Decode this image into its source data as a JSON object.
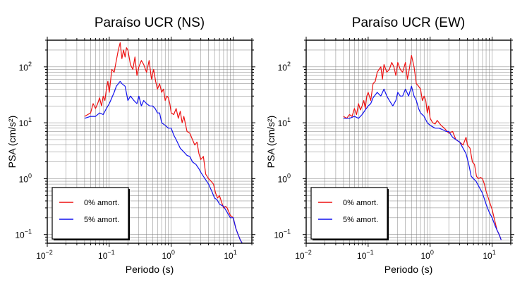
{
  "chart_data": [
    {
      "type": "line",
      "title": "Paraíso UCR (NS)",
      "xlabel": "Periodo (s)",
      "ylabel": "PSA (cm/s²)",
      "xscale": "log",
      "yscale": "log",
      "xlim": [
        0.01,
        20
      ],
      "ylim": [
        0.07,
        300
      ],
      "xticks": [
        {
          "value": 0.01,
          "base": "10",
          "exp": "−2"
        },
        {
          "value": 0.1,
          "base": "10",
          "exp": "−1"
        },
        {
          "value": 1,
          "base": "10",
          "exp": "0"
        },
        {
          "value": 10,
          "base": "10",
          "exp": "1"
        }
      ],
      "yticks": [
        {
          "value": 0.1,
          "label": "10",
          "exp": "−1"
        },
        {
          "value": 1,
          "label": "10",
          "exp": "0"
        },
        {
          "value": 10,
          "label": "10",
          "exp": "1"
        },
        {
          "value": 100,
          "label": "10",
          "exp": "2"
        }
      ],
      "grid": true,
      "legend_position": "bottom-left",
      "series": [
        {
          "name": "0% amort.",
          "color": "#ee1111",
          "x": [
            0.04,
            0.045,
            0.05,
            0.055,
            0.06,
            0.065,
            0.07,
            0.075,
            0.08,
            0.085,
            0.09,
            0.095,
            0.1,
            0.11,
            0.12,
            0.13,
            0.14,
            0.15,
            0.16,
            0.17,
            0.18,
            0.19,
            0.2,
            0.22,
            0.24,
            0.26,
            0.28,
            0.3,
            0.33,
            0.36,
            0.4,
            0.44,
            0.48,
            0.52,
            0.56,
            0.6,
            0.65,
            0.7,
            0.75,
            0.8,
            0.85,
            0.9,
            0.95,
            1.0,
            1.1,
            1.2,
            1.3,
            1.4,
            1.5,
            1.6,
            1.8,
            2.0,
            2.2,
            2.4,
            2.6,
            2.8,
            3.0,
            3.3,
            3.6,
            4.0,
            4.4,
            4.8,
            5.2,
            5.6,
            6.0,
            6.5,
            7.0,
            7.5,
            8.0,
            9.0,
            10.0,
            11.0,
            12.0,
            13.0,
            14.0
          ],
          "y": [
            13,
            14,
            15,
            22,
            18,
            22,
            28,
            20,
            30,
            25,
            40,
            55,
            35,
            90,
            80,
            130,
            200,
            270,
            140,
            200,
            150,
            220,
            200,
            110,
            90,
            150,
            70,
            100,
            130,
            110,
            80,
            130,
            60,
            90,
            55,
            40,
            50,
            35,
            40,
            25,
            30,
            28,
            22,
            15,
            14,
            18,
            12,
            16,
            10,
            13,
            7,
            6.5,
            5,
            4,
            4.5,
            2.8,
            2.2,
            2.5,
            1.2,
            1.0,
            0.9,
            0.8,
            0.55,
            0.45,
            0.5,
            0.38,
            0.3,
            0.32,
            0.3,
            0.22,
            0.2,
            0.13,
            0.1,
            0.08,
            0.07
          ]
        },
        {
          "name": "5% amort.",
          "color": "#1111ee",
          "x": [
            0.04,
            0.05,
            0.06,
            0.07,
            0.08,
            0.09,
            0.1,
            0.11,
            0.12,
            0.13,
            0.14,
            0.15,
            0.16,
            0.18,
            0.2,
            0.22,
            0.25,
            0.28,
            0.3,
            0.33,
            0.36,
            0.4,
            0.45,
            0.5,
            0.55,
            0.6,
            0.65,
            0.7,
            0.8,
            0.9,
            1.0,
            1.1,
            1.2,
            1.4,
            1.6,
            1.8,
            2.0,
            2.2,
            2.5,
            2.8,
            3.0,
            3.5,
            4.0,
            4.5,
            5.0,
            5.5,
            6.0,
            7.0,
            8.0,
            9.0,
            10.0,
            11.0,
            12.0,
            13.0,
            14.0
          ],
          "y": [
            12,
            13,
            13,
            15,
            14,
            18,
            22,
            28,
            35,
            45,
            50,
            55,
            50,
            45,
            25,
            30,
            25,
            22,
            30,
            20,
            25,
            22,
            20,
            20,
            18,
            15,
            15,
            10,
            9,
            8,
            8,
            6,
            5,
            3.5,
            3.0,
            2.6,
            2.5,
            2.0,
            1.8,
            1.5,
            1.3,
            1.0,
            0.8,
            0.6,
            0.45,
            0.42,
            0.35,
            0.32,
            0.25,
            0.2,
            0.2,
            0.13,
            0.1,
            0.08,
            0.07
          ]
        }
      ]
    },
    {
      "type": "line",
      "title": "Paraíso UCR (EW)",
      "xlabel": "Periodo (s)",
      "ylabel": "PSA (cm/s²)",
      "xscale": "log",
      "yscale": "log",
      "xlim": [
        0.01,
        20
      ],
      "ylim": [
        0.07,
        300
      ],
      "xticks": [
        {
          "value": 0.01,
          "base": "10",
          "exp": "−2"
        },
        {
          "value": 0.1,
          "base": "10",
          "exp": "−1"
        },
        {
          "value": 1,
          "base": "10",
          "exp": "0"
        },
        {
          "value": 10,
          "base": "10",
          "exp": "1"
        }
      ],
      "yticks": [
        {
          "value": 0.1,
          "label": "10",
          "exp": "−1"
        },
        {
          "value": 1,
          "label": "10",
          "exp": "0"
        },
        {
          "value": 10,
          "label": "10",
          "exp": "1"
        },
        {
          "value": 100,
          "label": "10",
          "exp": "2"
        }
      ],
      "grid": true,
      "legend_position": "bottom-left",
      "series": [
        {
          "name": "0% amort.",
          "color": "#ee1111",
          "x": [
            0.04,
            0.045,
            0.05,
            0.055,
            0.06,
            0.065,
            0.07,
            0.075,
            0.08,
            0.085,
            0.09,
            0.095,
            0.1,
            0.11,
            0.12,
            0.13,
            0.14,
            0.15,
            0.16,
            0.17,
            0.18,
            0.2,
            0.22,
            0.24,
            0.26,
            0.28,
            0.3,
            0.33,
            0.36,
            0.4,
            0.43,
            0.46,
            0.5,
            0.55,
            0.6,
            0.65,
            0.7,
            0.75,
            0.8,
            0.85,
            0.9,
            0.95,
            1.0,
            1.1,
            1.2,
            1.3,
            1.5,
            1.7,
            2.0,
            2.3,
            2.6,
            3.0,
            3.4,
            3.8,
            4.0,
            4.4,
            4.8,
            5.2,
            5.6,
            6.0,
            6.5,
            7.0,
            7.5,
            8.0,
            9.0,
            10.0,
            11.0,
            12.0,
            13.0,
            14.0
          ],
          "y": [
            13,
            12,
            14,
            13,
            18,
            14,
            22,
            17,
            20,
            25,
            18,
            30,
            35,
            25,
            50,
            55,
            80,
            90,
            100,
            60,
            110,
            80,
            90,
            120,
            100,
            70,
            120,
            90,
            80,
            120,
            60,
            90,
            160,
            100,
            50,
            45,
            40,
            25,
            30,
            25,
            15,
            20,
            12,
            10,
            9.5,
            11,
            9,
            8,
            6.5,
            7,
            5,
            4.5,
            4,
            5.5,
            4,
            3.5,
            2.0,
            1.8,
            1.1,
            1.0,
            1.05,
            1.0,
            0.8,
            0.6,
            0.4,
            0.28,
            0.18,
            0.12,
            0.1,
            0.08
          ],
          "_ref": ""
        },
        {
          "name": "5% amort.",
          "color": "#1111ee",
          "x": [
            0.04,
            0.05,
            0.06,
            0.07,
            0.08,
            0.09,
            0.1,
            0.11,
            0.12,
            0.14,
            0.16,
            0.18,
            0.2,
            0.22,
            0.25,
            0.28,
            0.3,
            0.33,
            0.36,
            0.4,
            0.45,
            0.5,
            0.55,
            0.6,
            0.65,
            0.7,
            0.8,
            0.9,
            1.0,
            1.2,
            1.4,
            1.6,
            1.8,
            2.0,
            2.3,
            2.6,
            3.0,
            3.4,
            3.8,
            4.2,
            4.6,
            5.0,
            5.5,
            6.0,
            7.0,
            8.0,
            9.0,
            10.0,
            11.0,
            12.0,
            13.0,
            14.0
          ],
          "y": [
            12,
            12,
            13,
            12,
            14,
            17,
            20,
            22,
            28,
            35,
            30,
            40,
            30,
            25,
            20,
            25,
            35,
            30,
            30,
            40,
            30,
            45,
            30,
            25,
            18,
            15,
            13,
            10,
            9,
            8,
            8,
            7.5,
            7,
            7,
            5.5,
            5,
            4.5,
            3.5,
            2.8,
            1.8,
            1.1,
            1.0,
            0.9,
            0.75,
            0.55,
            0.35,
            0.25,
            0.2,
            0.15,
            0.12,
            0.1,
            0.08
          ]
        }
      ]
    }
  ]
}
